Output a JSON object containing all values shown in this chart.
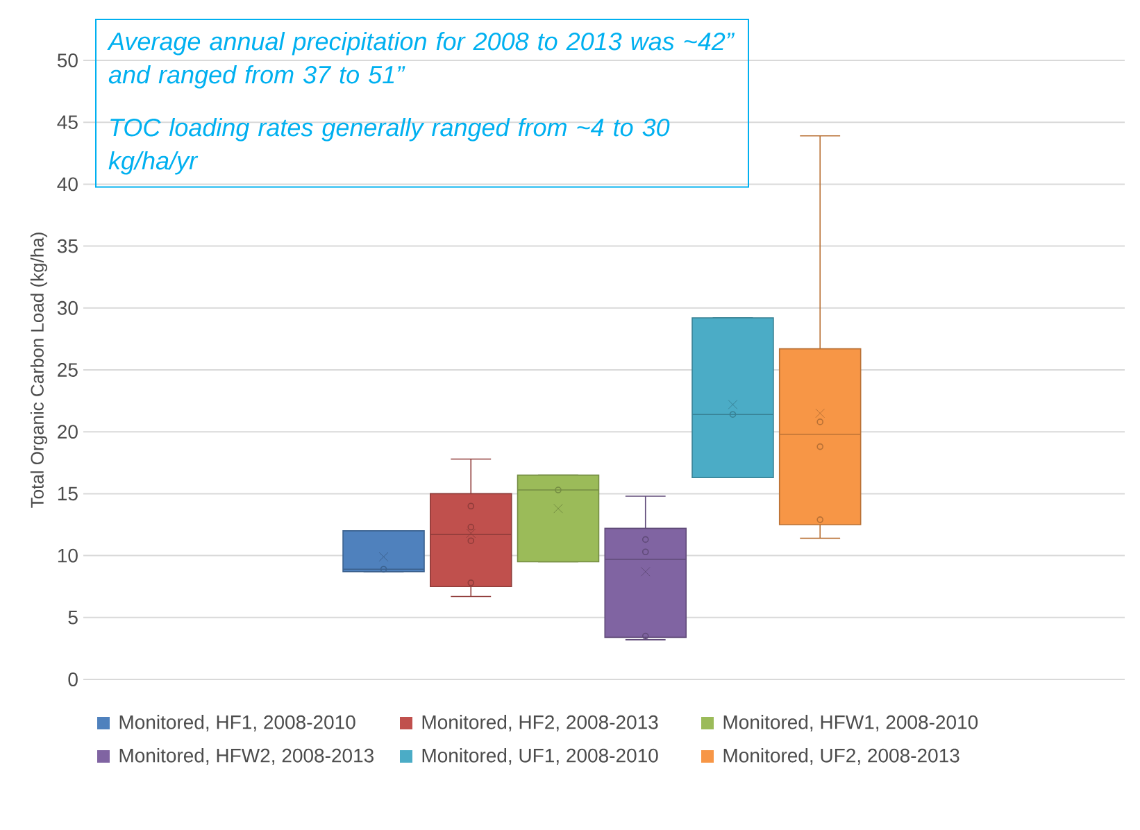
{
  "chart_data": {
    "type": "box",
    "ylabel": "Total Organic Carbon Load (kg/ha)",
    "categories": [
      null
    ],
    "ylim": [
      0,
      50
    ],
    "yticks": [
      0,
      5,
      10,
      15,
      20,
      25,
      30,
      35,
      40,
      45,
      50
    ],
    "grid": "y",
    "legend": "bottom",
    "tick_labels": "y",
    "annotations": [
      "Average annual precipitation for 2008 to 2013 was ~42” and ranged from 37 to 51”",
      "TOC loading rates generally ranged from ~4 to 30 kg/ha/yr"
    ],
    "series": [
      {
        "name": "Monitored, HF1, 2008-2010",
        "color": "#4f81bd",
        "boxes": [
          {
            "low": 8.7,
            "q1": 8.7,
            "median": 8.9,
            "q3": 12.0,
            "high": 12.0,
            "mean": 9.9,
            "outliers": [
              8.9
            ]
          }
        ]
      },
      {
        "name": "Monitored, HF2, 2008-2013",
        "color": "#c0504d",
        "boxes": [
          {
            "low": 6.7,
            "q1": 7.5,
            "median": 11.7,
            "q3": 15.0,
            "high": 17.8,
            "mean": 11.8,
            "outliers": [
              14.0,
              12.3,
              11.2,
              7.8
            ]
          }
        ]
      },
      {
        "name": "Monitored, HFW1, 2008-2010",
        "color": "#9bbb59",
        "boxes": [
          {
            "low": 9.5,
            "q1": 9.5,
            "median": 15.3,
            "q3": 16.5,
            "high": 16.5,
            "mean": 13.8,
            "outliers": [
              15.3
            ]
          }
        ]
      },
      {
        "name": "Monitored, HFW2, 2008-2013",
        "color": "#8064a2",
        "boxes": [
          {
            "low": 3.2,
            "q1": 3.4,
            "median": 9.7,
            "q3": 12.2,
            "high": 14.8,
            "mean": 8.7,
            "outliers": [
              11.3,
              10.3,
              3.5
            ]
          }
        ]
      },
      {
        "name": "Monitored, UF1, 2008-2010",
        "color": "#4bacc6",
        "boxes": [
          {
            "low": 16.3,
            "q1": 16.3,
            "median": 21.4,
            "q3": 29.2,
            "high": 29.2,
            "mean": 22.2,
            "outliers": [
              21.4
            ]
          }
        ]
      },
      {
        "name": "Monitored, UF2, 2008-2013",
        "color": "#f79646",
        "boxes": [
          {
            "low": 11.4,
            "q1": 12.5,
            "median": 19.8,
            "q3": 26.7,
            "high": 43.9,
            "mean": 21.5,
            "outliers": [
              20.8,
              18.8,
              12.9
            ]
          }
        ]
      }
    ]
  }
}
